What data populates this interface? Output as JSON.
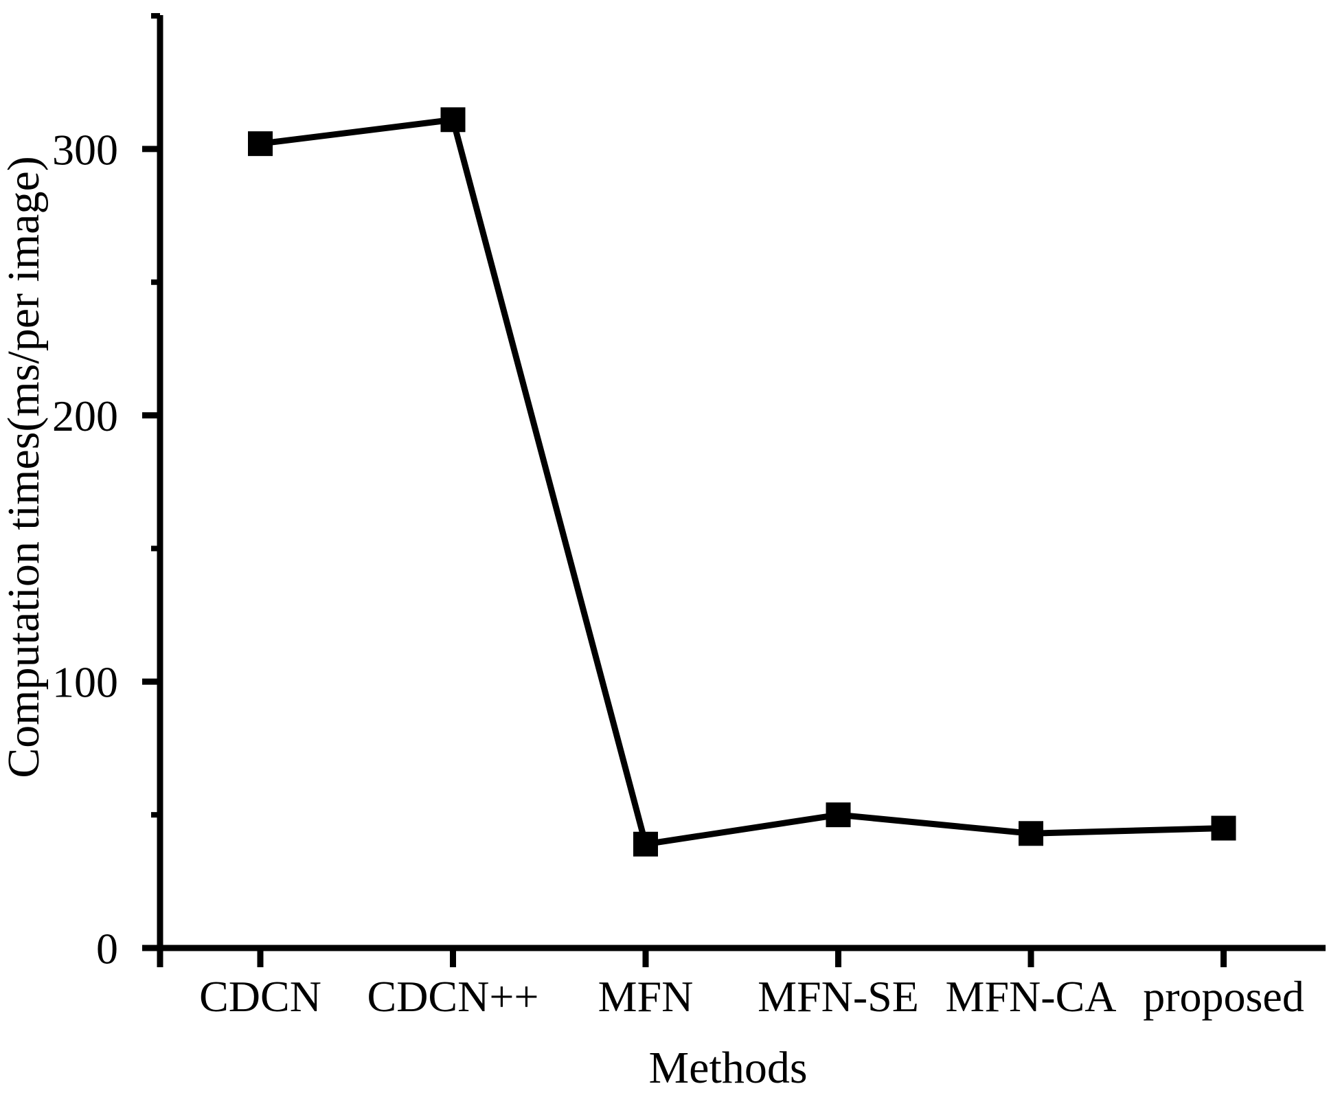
{
  "chart_data": {
    "type": "line",
    "title": "",
    "xlabel": "Methods",
    "ylabel": "Computation times(ms/per image)",
    "categories": [
      "CDCN",
      "CDCN++",
      "MFN",
      "MFN-SE",
      "MFN-CA",
      "proposed"
    ],
    "values": [
      302,
      311,
      39,
      50,
      43,
      45
    ],
    "yticks_major": [
      0,
      100,
      200,
      300
    ],
    "yticks_minor": [
      50,
      150,
      250,
      350
    ],
    "ylim": [
      0,
      352
    ],
    "xlim_note": "categorical axis, six evenly spaced methods",
    "grid": false,
    "legend": "none",
    "line_color": "#000000",
    "marker_shape": "square",
    "marker_color": "#000000",
    "background_color": "#ffffff"
  }
}
